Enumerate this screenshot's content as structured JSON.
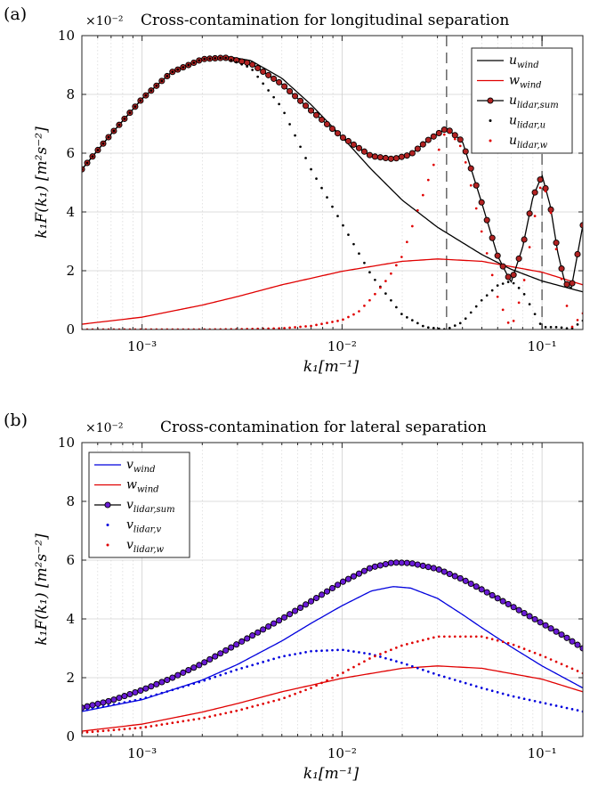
{
  "chart_data": [
    {
      "panel_label": "(a)",
      "type": "line",
      "title": "Cross-contamination for longitudinal separation",
      "xlabel": "k₁[m⁻¹]",
      "ylabel": "k₁F(k₁) [m²s⁻²]",
      "x_scale": "log",
      "xlim": [
        0.0005,
        0.16
      ],
      "ylim": [
        0,
        0.1
      ],
      "y_multiplier": "×10⁻²",
      "yticks": [
        "0",
        "2",
        "4",
        "6",
        "8",
        "10"
      ],
      "xtick_labels": [
        "10⁻³",
        "10⁻²",
        "10⁻¹"
      ],
      "grid": true,
      "legend_position": "top-right",
      "vertical_lines": [
        0.0333,
        0.1
      ],
      "series": [
        {
          "name": "u_wind",
          "color": "#000000",
          "style": "line",
          "x": [
            0.0005,
            0.0007,
            0.001,
            0.0014,
            0.002,
            0.0026,
            0.0035,
            0.005,
            0.007,
            0.01,
            0.014,
            0.02,
            0.03,
            0.05,
            0.07,
            0.1,
            0.16
          ],
          "y": [
            0.0545,
            0.0665,
            0.0785,
            0.0875,
            0.092,
            0.093,
            0.0915,
            0.0855,
            0.0765,
            0.0655,
            0.0545,
            0.044,
            0.0348,
            0.0255,
            0.0205,
            0.0165,
            0.0128
          ]
        },
        {
          "name": "w_wind",
          "color": "#e00000",
          "style": "line",
          "x": [
            0.0005,
            0.001,
            0.002,
            0.003,
            0.005,
            0.01,
            0.02,
            0.03,
            0.05,
            0.1,
            0.16
          ],
          "y": [
            0.0018,
            0.0042,
            0.0083,
            0.0112,
            0.0152,
            0.0198,
            0.0232,
            0.024,
            0.0232,
            0.0195,
            0.0152
          ]
        },
        {
          "name": "u_lidar,sum",
          "color": "#b22222",
          "style": "line-circle",
          "x": [
            0.0005,
            0.0007,
            0.001,
            0.0014,
            0.002,
            0.0026,
            0.0035,
            0.005,
            0.007,
            0.01,
            0.014,
            0.018,
            0.022,
            0.027,
            0.0333,
            0.04,
            0.05,
            0.06,
            0.07,
            0.08,
            0.09,
            0.1,
            0.11,
            0.12,
            0.13,
            0.14,
            0.16
          ],
          "y": [
            0.0545,
            0.0665,
            0.0785,
            0.0875,
            0.092,
            0.0925,
            0.0905,
            0.0835,
            0.0745,
            0.0655,
            0.059,
            0.058,
            0.0595,
            0.0645,
            0.0685,
            0.064,
            0.043,
            0.025,
            0.016,
            0.028,
            0.045,
            0.0525,
            0.042,
            0.026,
            0.016,
            0.014,
            0.0355
          ]
        },
        {
          "name": "u_lidar,u",
          "color": "#000000",
          "style": "dots",
          "x": [
            0.0005,
            0.0007,
            0.001,
            0.0014,
            0.002,
            0.0026,
            0.0035,
            0.005,
            0.007,
            0.01,
            0.014,
            0.02,
            0.026,
            0.0333,
            0.04,
            0.05,
            0.06,
            0.07,
            0.08,
            0.09,
            0.1,
            0.12,
            0.14,
            0.16
          ],
          "y": [
            0.0545,
            0.0665,
            0.0785,
            0.0875,
            0.092,
            0.0925,
            0.089,
            0.0755,
            0.0545,
            0.036,
            0.0185,
            0.005,
            0.0008,
            0.0,
            0.0025,
            0.01,
            0.015,
            0.0165,
            0.013,
            0.0065,
            0.0008,
            0.0008,
            0.0002,
            0.003
          ]
        },
        {
          "name": "u_lidar,w",
          "color": "#e00000",
          "style": "dots",
          "x": [
            0.0005,
            0.001,
            0.002,
            0.003,
            0.005,
            0.007,
            0.01,
            0.012,
            0.014,
            0.017,
            0.02,
            0.024,
            0.0333,
            0.04,
            0.05,
            0.06,
            0.07,
            0.08,
            0.09,
            0.1,
            0.11,
            0.12,
            0.14,
            0.16
          ],
          "y": [
            0.0,
            0.0,
            0.0,
            0.0001,
            0.0004,
            0.0012,
            0.0032,
            0.0058,
            0.0105,
            0.0175,
            0.025,
            0.041,
            0.0685,
            0.0615,
            0.033,
            0.011,
            0.0,
            0.0135,
            0.035,
            0.0515,
            0.041,
            0.0235,
            0.0005,
            0.0055
          ]
        }
      ]
    },
    {
      "panel_label": "(b)",
      "type": "line",
      "title": "Cross-contamination for lateral separation",
      "xlabel": "k₁[m⁻¹]",
      "ylabel": "k₁F(k₁) [m²s⁻²]",
      "x_scale": "log",
      "xlim": [
        0.0005,
        0.16
      ],
      "ylim": [
        0,
        0.1
      ],
      "y_multiplier": "×10⁻²",
      "yticks": [
        "0",
        "2",
        "4",
        "6",
        "8",
        "10"
      ],
      "xtick_labels": [
        "10⁻³",
        "10⁻²",
        "10⁻¹"
      ],
      "grid": true,
      "legend_position": "top-left",
      "series": [
        {
          "name": "v_wind",
          "color": "#0000dd",
          "style": "line",
          "x": [
            0.0005,
            0.001,
            0.002,
            0.003,
            0.005,
            0.007,
            0.01,
            0.014,
            0.018,
            0.022,
            0.03,
            0.04,
            0.05,
            0.07,
            0.1,
            0.16
          ],
          "y": [
            0.0085,
            0.0125,
            0.0192,
            0.0245,
            0.0325,
            0.0385,
            0.0445,
            0.0495,
            0.051,
            0.0505,
            0.047,
            0.0415,
            0.037,
            0.0305,
            0.024,
            0.0165
          ]
        },
        {
          "name": "w_wind",
          "color": "#e00000",
          "style": "line",
          "x": [
            0.0005,
            0.001,
            0.002,
            0.003,
            0.005,
            0.01,
            0.02,
            0.03,
            0.05,
            0.1,
            0.16
          ],
          "y": [
            0.0018,
            0.0042,
            0.0083,
            0.0112,
            0.0152,
            0.0198,
            0.0232,
            0.024,
            0.0232,
            0.0195,
            0.0152
          ]
        },
        {
          "name": "v_lidar,sum",
          "color": "#6a1bd6",
          "style": "line-circle",
          "x": [
            0.0005,
            0.0007,
            0.001,
            0.0014,
            0.002,
            0.003,
            0.005,
            0.007,
            0.01,
            0.014,
            0.018,
            0.022,
            0.03,
            0.04,
            0.05,
            0.07,
            0.1,
            0.13,
            0.16
          ],
          "y": [
            0.0098,
            0.0122,
            0.0158,
            0.0198,
            0.0248,
            0.0315,
            0.04,
            0.046,
            0.0525,
            0.0575,
            0.0592,
            0.059,
            0.057,
            0.0535,
            0.05,
            0.0445,
            0.0385,
            0.034,
            0.03
          ]
        },
        {
          "name": "v_lidar,v",
          "color": "#0000dd",
          "style": "dots",
          "x": [
            0.0005,
            0.001,
            0.002,
            0.003,
            0.005,
            0.007,
            0.01,
            0.014,
            0.02,
            0.03,
            0.05,
            0.07,
            0.1,
            0.16
          ],
          "y": [
            0.0087,
            0.0128,
            0.0188,
            0.0228,
            0.0272,
            0.029,
            0.0295,
            0.028,
            0.025,
            0.021,
            0.0165,
            0.0138,
            0.0115,
            0.0085
          ]
        },
        {
          "name": "v_lidar,w",
          "color": "#e00000",
          "style": "dots",
          "x": [
            0.0005,
            0.001,
            0.002,
            0.003,
            0.005,
            0.007,
            0.01,
            0.014,
            0.02,
            0.03,
            0.05,
            0.07,
            0.1,
            0.16
          ],
          "y": [
            0.0013,
            0.003,
            0.0062,
            0.0088,
            0.0128,
            0.0165,
            0.0215,
            0.0268,
            0.031,
            0.034,
            0.034,
            0.0315,
            0.0275,
            0.0215
          ]
        }
      ]
    }
  ]
}
